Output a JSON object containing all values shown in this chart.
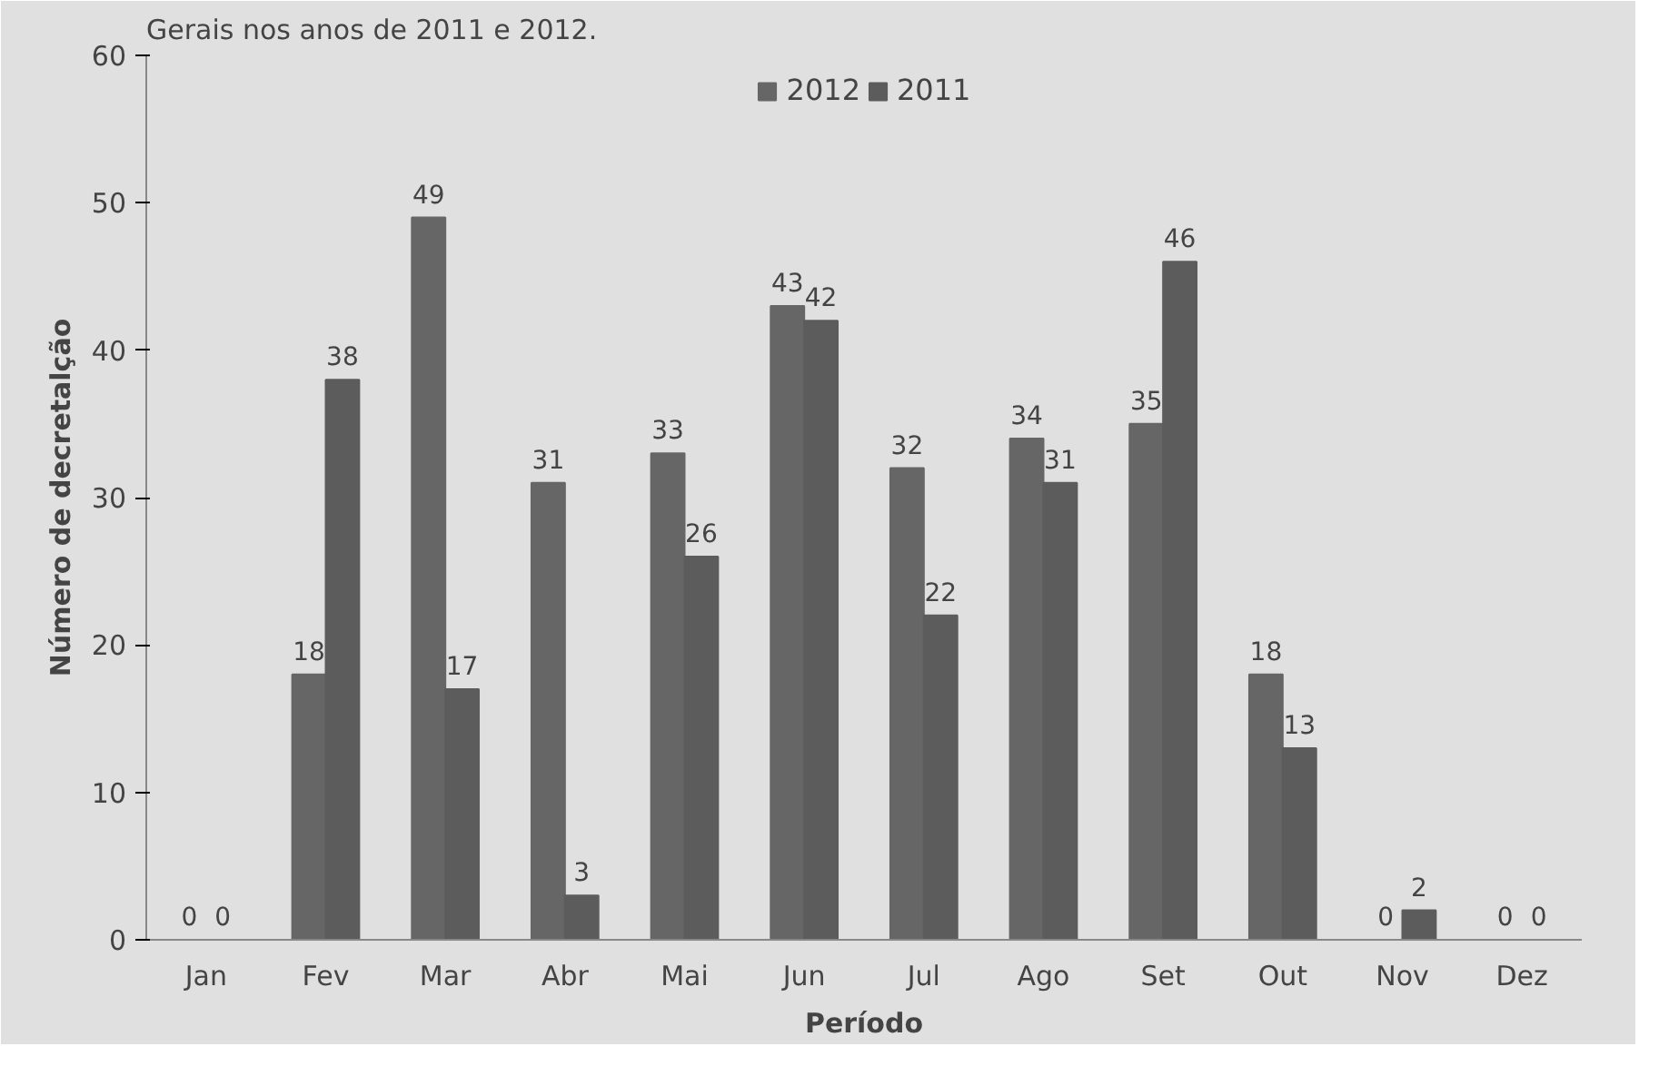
{
  "chart_data": {
    "type": "bar",
    "xlabel": "Período",
    "ylabel": "Número de decretalção",
    "annotations": [
      "Gerais nos anos de 2011 e 2012."
    ],
    "categories": [
      "Jan",
      "Fev",
      "Mar",
      "Abr",
      "Mai",
      "Jun",
      "Jul",
      "Ago",
      "Set",
      "Out",
      "Nov",
      "Dez"
    ],
    "series": [
      {
        "name": "2012",
        "color": "#666666",
        "values": [
          0,
          18,
          49,
          31,
          33,
          43,
          32,
          34,
          35,
          18,
          0,
          0
        ]
      },
      {
        "name": "2011",
        "color": "#5c5c5c",
        "values": [
          0,
          38,
          17,
          3,
          26,
          42,
          22,
          31,
          46,
          13,
          2,
          0
        ]
      }
    ],
    "ylim": [
      0,
      60
    ],
    "yticks": [
      0,
      10,
      20,
      30,
      40,
      50,
      60
    ],
    "data_labels": true,
    "legend": "top"
  }
}
